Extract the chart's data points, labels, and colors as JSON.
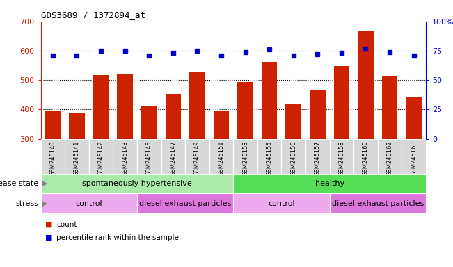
{
  "title": "GDS3689 / 1372894_at",
  "samples": [
    "GSM245140",
    "GSM245141",
    "GSM245142",
    "GSM245143",
    "GSM245145",
    "GSM245147",
    "GSM245149",
    "GSM245151",
    "GSM245153",
    "GSM245155",
    "GSM245156",
    "GSM245157",
    "GSM245158",
    "GSM245160",
    "GSM245162",
    "GSM245163"
  ],
  "counts": [
    397,
    388,
    518,
    521,
    411,
    454,
    527,
    396,
    494,
    562,
    419,
    466,
    547,
    666,
    515,
    444
  ],
  "percentiles": [
    71,
    71,
    75,
    75,
    71,
    73,
    75,
    71,
    74,
    76,
    71,
    72,
    73,
    77,
    74,
    71
  ],
  "ylim_left": [
    300,
    700
  ],
  "ylim_right": [
    0,
    100
  ],
  "yticks_left": [
    300,
    400,
    500,
    600,
    700
  ],
  "yticks_right": [
    0,
    25,
    50,
    75,
    100
  ],
  "ytick_right_labels": [
    "0",
    "25",
    "50",
    "75",
    "100%"
  ],
  "bar_color": "#cc2200",
  "dot_color": "#0000cc",
  "dot_size": 5,
  "grid_dotted_at": [
    400,
    500,
    600
  ],
  "disease_state_groups": [
    {
      "label": "spontaneously hypertensive",
      "start": 0,
      "end": 8,
      "color": "#aaeaaa"
    },
    {
      "label": "healthy",
      "start": 8,
      "end": 16,
      "color": "#55dd55"
    }
  ],
  "stress_groups": [
    {
      "label": "control",
      "start": 0,
      "end": 4,
      "color": "#eeaaee"
    },
    {
      "label": "diesel exhaust particles",
      "start": 4,
      "end": 8,
      "color": "#dd77dd"
    },
    {
      "label": "control",
      "start": 8,
      "end": 12,
      "color": "#eeaaee"
    },
    {
      "label": "diesel exhaust particles",
      "start": 12,
      "end": 16,
      "color": "#dd77dd"
    }
  ],
  "tick_label_color": "#cc2200",
  "right_tick_color": "#0000cc",
  "tick_box_color": "#d8d8d8",
  "legend_items": [
    {
      "label": "count",
      "color": "#cc2200"
    },
    {
      "label": "percentile rank within the sample",
      "color": "#0000cc"
    }
  ]
}
